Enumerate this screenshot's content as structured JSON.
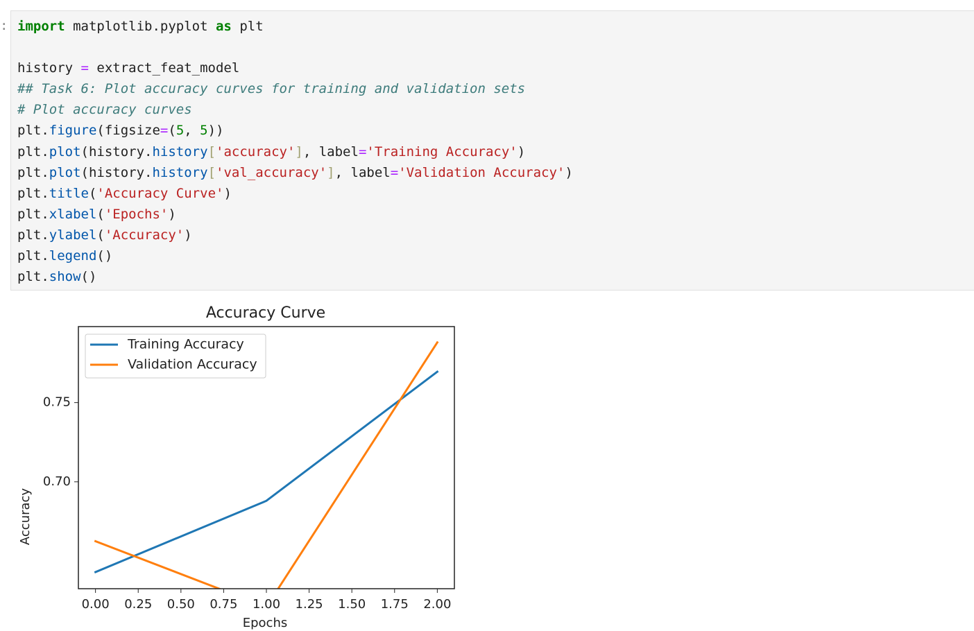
{
  "prompt": ":",
  "code": {
    "lines": [
      [
        {
          "text": "import",
          "color": "#008000",
          "bold": true
        },
        {
          "text": " matplotlib.pyplot ",
          "color": "#212121"
        },
        {
          "text": "as",
          "color": "#008000",
          "bold": true
        },
        {
          "text": " plt",
          "color": "#212121"
        }
      ],
      [],
      [
        {
          "text": "history ",
          "color": "#212121"
        },
        {
          "text": "=",
          "color": "#aa22ff"
        },
        {
          "text": " extract_feat_model",
          "color": "#212121"
        }
      ],
      [
        {
          "text": "## Task 6: Plot accuracy curves for training and validation sets",
          "color": "#3d7b7b",
          "italic": true
        }
      ],
      [
        {
          "text": "# Plot accuracy curves",
          "color": "#3d7b7b",
          "italic": true
        }
      ],
      [
        {
          "text": "plt.",
          "color": "#212121"
        },
        {
          "text": "figure",
          "color": "#0055aa"
        },
        {
          "text": "(figsize",
          "color": "#212121"
        },
        {
          "text": "=",
          "color": "#aa22ff"
        },
        {
          "text": "(",
          "color": "#212121"
        },
        {
          "text": "5",
          "color": "#008000"
        },
        {
          "text": ", ",
          "color": "#212121"
        },
        {
          "text": "5",
          "color": "#008000"
        },
        {
          "text": "))",
          "color": "#212121"
        }
      ],
      [
        {
          "text": "plt.",
          "color": "#212121"
        },
        {
          "text": "plot",
          "color": "#0055aa"
        },
        {
          "text": "(history.",
          "color": "#212121"
        },
        {
          "text": "history",
          "color": "#0055aa"
        },
        {
          "text": "[",
          "color": "#a0a070"
        },
        {
          "text": "'accuracy'",
          "color": "#ba2121"
        },
        {
          "text": "]",
          "color": "#a0a070"
        },
        {
          "text": ", label",
          "color": "#212121"
        },
        {
          "text": "=",
          "color": "#aa22ff"
        },
        {
          "text": "'Training Accuracy'",
          "color": "#ba2121"
        },
        {
          "text": ")",
          "color": "#212121"
        }
      ],
      [
        {
          "text": "plt.",
          "color": "#212121"
        },
        {
          "text": "plot",
          "color": "#0055aa"
        },
        {
          "text": "(history.",
          "color": "#212121"
        },
        {
          "text": "history",
          "color": "#0055aa"
        },
        {
          "text": "[",
          "color": "#a0a070"
        },
        {
          "text": "'val_accuracy'",
          "color": "#ba2121"
        },
        {
          "text": "]",
          "color": "#a0a070"
        },
        {
          "text": ", label",
          "color": "#212121"
        },
        {
          "text": "=",
          "color": "#aa22ff"
        },
        {
          "text": "'Validation Accuracy'",
          "color": "#ba2121"
        },
        {
          "text": ")",
          "color": "#212121"
        }
      ],
      [
        {
          "text": "plt.",
          "color": "#212121"
        },
        {
          "text": "title",
          "color": "#0055aa"
        },
        {
          "text": "(",
          "color": "#212121"
        },
        {
          "text": "'Accuracy Curve'",
          "color": "#ba2121"
        },
        {
          "text": ")",
          "color": "#212121"
        }
      ],
      [
        {
          "text": "plt.",
          "color": "#212121"
        },
        {
          "text": "xlabel",
          "color": "#0055aa"
        },
        {
          "text": "(",
          "color": "#212121"
        },
        {
          "text": "'Epochs'",
          "color": "#ba2121"
        },
        {
          "text": ")",
          "color": "#212121"
        }
      ],
      [
        {
          "text": "plt.",
          "color": "#212121"
        },
        {
          "text": "ylabel",
          "color": "#0055aa"
        },
        {
          "text": "(",
          "color": "#212121"
        },
        {
          "text": "'Accuracy'",
          "color": "#ba2121"
        },
        {
          "text": ")",
          "color": "#212121"
        }
      ],
      [
        {
          "text": "plt.",
          "color": "#212121"
        },
        {
          "text": "legend",
          "color": "#0055aa"
        },
        {
          "text": "()",
          "color": "#212121"
        }
      ],
      [
        {
          "text": "plt.",
          "color": "#212121"
        },
        {
          "text": "show",
          "color": "#0055aa"
        },
        {
          "text": "()",
          "color": "#212121"
        }
      ]
    ]
  },
  "chart_data": {
    "type": "line",
    "title": "Accuracy Curve",
    "xlabel": "Epochs",
    "ylabel": "Accuracy",
    "x": [
      0,
      1,
      2
    ],
    "series": [
      {
        "name": "Training Accuracy",
        "color": "#1f77b4",
        "values": [
          0.643,
          0.688,
          0.7695
        ]
      },
      {
        "name": "Validation Accuracy",
        "color": "#ff7f0e",
        "values": [
          0.6625,
          0.621,
          0.788
        ]
      }
    ],
    "xlim": [
      -0.1,
      2.1
    ],
    "xticks": [
      {
        "value": 0,
        "label": "0.00"
      },
      {
        "value": 0.25,
        "label": "0.25"
      },
      {
        "value": 0.5,
        "label": "0.50"
      },
      {
        "value": 0.75,
        "label": "0.75"
      },
      {
        "value": 1,
        "label": "1.00"
      },
      {
        "value": 1.25,
        "label": "1.25"
      },
      {
        "value": 1.5,
        "label": "1.50"
      },
      {
        "value": 1.75,
        "label": "1.75"
      },
      {
        "value": 2,
        "label": "2.00"
      }
    ],
    "ylim": [
      0.6325,
      0.798
    ],
    "yticks": [
      {
        "value": 0.7,
        "label": "0.70"
      },
      {
        "value": 0.75,
        "label": "0.75"
      }
    ],
    "legend": "upper left"
  }
}
